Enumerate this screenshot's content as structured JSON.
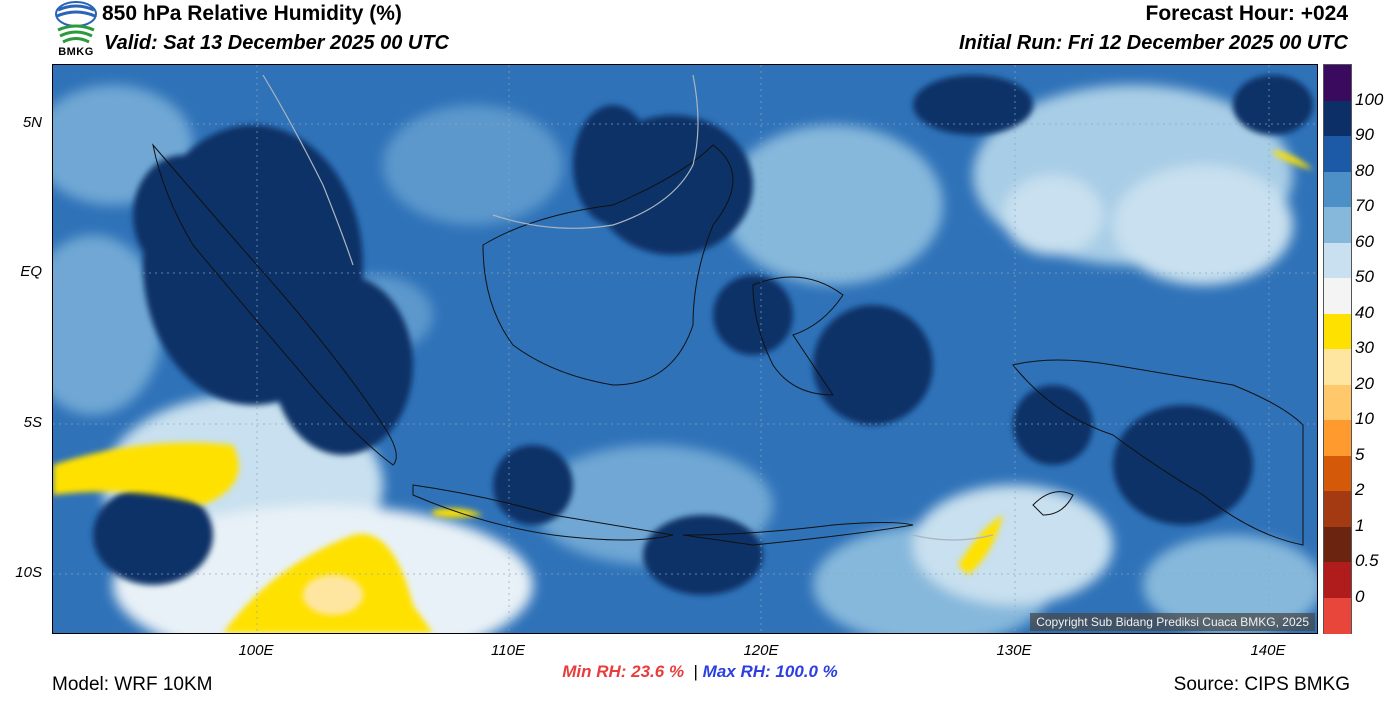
{
  "header": {
    "title": "850 hPa Relative Humidity (%)",
    "valid": "Valid: Sat 13 December 2025 00 UTC",
    "forecast_hour": "Forecast Hour: +024",
    "initial_run": "Initial Run: Fri 12 December 2025 00 UTC"
  },
  "logo": {
    "text": "BMKG",
    "icon": "bmkg-logo-icon"
  },
  "map": {
    "copyright": "Copyright Sub Bidang Prediksi Cuaca BMKG, 2025",
    "lat_ticks": [
      "5N",
      "EQ",
      "5S",
      "10S"
    ],
    "lon_ticks": [
      "100E",
      "110E",
      "120E",
      "130E",
      "140E"
    ]
  },
  "colorbar": {
    "labels": [
      "100",
      "90",
      "80",
      "70",
      "60",
      "50",
      "40",
      "30",
      "20",
      "10",
      "5",
      "2",
      "1",
      "0.5",
      "0"
    ],
    "colors": [
      "#3a0a5e",
      "#0b2f66",
      "#1c5aa8",
      "#4d8fc7",
      "#86b8dc",
      "#c8e0ef",
      "#f4f4f4",
      "#ffe100",
      "#ffe6a0",
      "#ffc86a",
      "#ff9a2e",
      "#d45a0a",
      "#a33a12",
      "#6b2410",
      "#b01c1c",
      "#e8463a"
    ]
  },
  "stats": {
    "min": "Min RH:  23.6 %",
    "separator": "|",
    "max": "Max RH: 100.0 %"
  },
  "footer": {
    "model": "Model: WRF 10KM",
    "source": "Source: CIPS BMKG"
  }
}
